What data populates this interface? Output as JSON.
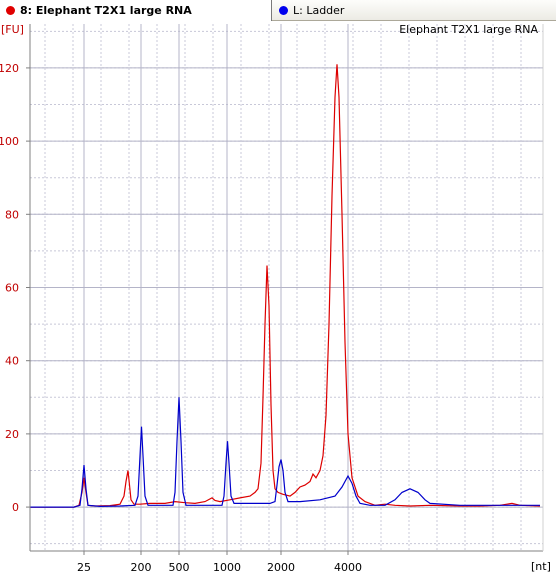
{
  "tabs": [
    {
      "label": "8: Elephant T2X1 large RNA",
      "color": "#e00000",
      "active": true
    },
    {
      "label": "L: Ladder",
      "color": "#0000ee",
      "active": false
    }
  ],
  "chart_data": {
    "type": "line",
    "title": "Elephant T2X1 large RNA",
    "ylabel": "[FU]",
    "xlabel": "[nt]",
    "ylim": [
      -12,
      132
    ],
    "yticks": [
      0,
      20,
      40,
      60,
      80,
      100,
      120
    ],
    "xticks": [
      {
        "label": "25",
        "pos": 84
      },
      {
        "label": "200",
        "pos": 141
      },
      {
        "label": "500",
        "pos": 179
      },
      {
        "label": "1000",
        "pos": 227
      },
      {
        "label": "2000",
        "pos": 281
      },
      {
        "label": "4000",
        "pos": 348
      }
    ],
    "grid": true,
    "series": [
      {
        "name": "8: Elephant T2X1 large RNA",
        "color": "#dd0000",
        "points": [
          [
            30,
            0
          ],
          [
            74,
            0
          ],
          [
            79,
            0.5
          ],
          [
            82,
            4
          ],
          [
            84,
            8
          ],
          [
            86,
            4
          ],
          [
            88,
            0.5
          ],
          [
            95,
            0.3
          ],
          [
            110,
            0.4
          ],
          [
            120,
            0.8
          ],
          [
            124,
            3
          ],
          [
            126,
            7
          ],
          [
            128,
            10
          ],
          [
            129.5,
            6
          ],
          [
            131,
            2
          ],
          [
            134,
            0.8
          ],
          [
            140,
            0.8
          ],
          [
            150,
            1
          ],
          [
            165,
            1
          ],
          [
            175,
            1.5
          ],
          [
            185,
            1.2
          ],
          [
            195,
            1
          ],
          [
            205,
            1.5
          ],
          [
            212,
            2.5
          ],
          [
            215,
            1.8
          ],
          [
            220,
            1.5
          ],
          [
            230,
            2
          ],
          [
            240,
            2.5
          ],
          [
            250,
            3
          ],
          [
            255,
            4
          ],
          [
            258,
            5
          ],
          [
            261,
            12
          ],
          [
            263,
            30
          ],
          [
            265,
            50
          ],
          [
            267,
            66
          ],
          [
            269,
            55
          ],
          [
            271,
            28
          ],
          [
            273,
            10
          ],
          [
            275,
            5
          ],
          [
            278,
            4
          ],
          [
            283,
            3.5
          ],
          [
            290,
            3
          ],
          [
            295,
            4
          ],
          [
            300,
            5.5
          ],
          [
            305,
            6
          ],
          [
            310,
            7
          ],
          [
            313,
            9
          ],
          [
            316,
            8
          ],
          [
            320,
            10
          ],
          [
            323,
            14
          ],
          [
            326,
            25
          ],
          [
            329,
            50
          ],
          [
            332,
            85
          ],
          [
            335,
            112
          ],
          [
            337,
            121
          ],
          [
            339,
            112
          ],
          [
            342,
            80
          ],
          [
            345,
            45
          ],
          [
            348,
            20
          ],
          [
            352,
            8
          ],
          [
            358,
            3
          ],
          [
            365,
            1.5
          ],
          [
            375,
            0.5
          ],
          [
            385,
            0.8
          ],
          [
            395,
            0.5
          ],
          [
            410,
            0.3
          ],
          [
            430,
            0.5
          ],
          [
            460,
            0.3
          ],
          [
            480,
            0.3
          ],
          [
            500,
            0.5
          ],
          [
            512,
            1
          ],
          [
            520,
            0.5
          ],
          [
            540,
            0.3
          ]
        ]
      },
      {
        "name": "L: Ladder",
        "color": "#0000cc",
        "points": [
          [
            30,
            0
          ],
          [
            74,
            0
          ],
          [
            80,
            0.5
          ],
          [
            82,
            5
          ],
          [
            84,
            11.5
          ],
          [
            86,
            5
          ],
          [
            88,
            0.5
          ],
          [
            100,
            0.2
          ],
          [
            120,
            0.3
          ],
          [
            135,
            0.5
          ],
          [
            138,
            3
          ],
          [
            140,
            14
          ],
          [
            141.5,
            22
          ],
          [
            143,
            14
          ],
          [
            145,
            3
          ],
          [
            148,
            0.5
          ],
          [
            160,
            0.5
          ],
          [
            173,
            0.5
          ],
          [
            175,
            4
          ],
          [
            177,
            18
          ],
          [
            179,
            30
          ],
          [
            181,
            18
          ],
          [
            183,
            4
          ],
          [
            186,
            0.5
          ],
          [
            200,
            0.5
          ],
          [
            222,
            0.5
          ],
          [
            224,
            3
          ],
          [
            226,
            12
          ],
          [
            227.5,
            18
          ],
          [
            229,
            12
          ],
          [
            231,
            3
          ],
          [
            234,
            1
          ],
          [
            250,
            1
          ],
          [
            270,
            1
          ],
          [
            275,
            1.5
          ],
          [
            277,
            6
          ],
          [
            279,
            11
          ],
          [
            281,
            13
          ],
          [
            283,
            10
          ],
          [
            285,
            4
          ],
          [
            288,
            1.5
          ],
          [
            300,
            1.5
          ],
          [
            320,
            2
          ],
          [
            335,
            3
          ],
          [
            342,
            5.5
          ],
          [
            348,
            8.5
          ],
          [
            352,
            6.5
          ],
          [
            356,
            3
          ],
          [
            360,
            1
          ],
          [
            370,
            0.5
          ],
          [
            385,
            0.5
          ],
          [
            395,
            2
          ],
          [
            402,
            4
          ],
          [
            410,
            5
          ],
          [
            418,
            4
          ],
          [
            425,
            2
          ],
          [
            430,
            1
          ],
          [
            460,
            0.5
          ],
          [
            500,
            0.5
          ],
          [
            540,
            0.5
          ]
        ]
      }
    ]
  }
}
